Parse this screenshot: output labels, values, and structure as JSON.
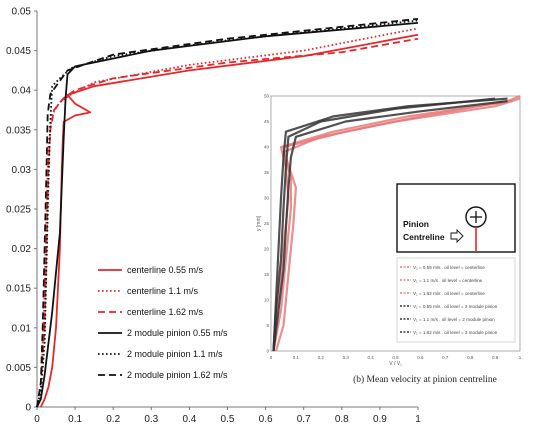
{
  "chart_data": [
    {
      "type": "line",
      "title": "",
      "xlabel": "",
      "ylabel": "",
      "xlim": [
        0,
        1
      ],
      "ylim": [
        0,
        0.05
      ],
      "x_ticks": [
        "0",
        "0.1",
        "0.2",
        "0.3",
        "0.4",
        "0.5",
        "0.6",
        "0.7",
        "0.8",
        "0.9",
        "1"
      ],
      "y_ticks": [
        "0",
        "0.005",
        "0.01",
        "0.015",
        "0.02",
        "0.025",
        "0.03",
        "0.035",
        "0.04",
        "0.045",
        "0.05"
      ],
      "grid": false,
      "legend_position": "bottom-left",
      "series": [
        {
          "name": "centerline 0.55 m/s",
          "color": "#e8262a",
          "style": "solid",
          "points": [
            [
              0.01,
              0.0
            ],
            [
              0.02,
              0.001
            ],
            [
              0.03,
              0.0025
            ],
            [
              0.04,
              0.005
            ],
            [
              0.05,
              0.01
            ],
            [
              0.06,
              0.02
            ],
            [
              0.065,
              0.03
            ],
            [
              0.068,
              0.034
            ],
            [
              0.07,
              0.036
            ],
            [
              0.1,
              0.0368
            ],
            [
              0.14,
              0.0372
            ],
            [
              0.1,
              0.0383
            ],
            [
              0.08,
              0.0394
            ],
            [
              0.15,
              0.0405
            ],
            [
              0.4,
              0.0425
            ],
            [
              0.7,
              0.0443
            ],
            [
              1.0,
              0.047
            ]
          ]
        },
        {
          "name": "centerline 1.1 m/s",
          "color": "#e8262a",
          "style": "dotted",
          "points": [
            [
              0.0,
              0.0
            ],
            [
              0.01,
              0.002
            ],
            [
              0.015,
              0.008
            ],
            [
              0.02,
              0.015
            ],
            [
              0.025,
              0.025
            ],
            [
              0.03,
              0.033
            ],
            [
              0.04,
              0.037
            ],
            [
              0.06,
              0.0385
            ],
            [
              0.09,
              0.0395
            ],
            [
              0.15,
              0.041
            ],
            [
              0.4,
              0.0432
            ],
            [
              0.7,
              0.045
            ],
            [
              1.0,
              0.0478
            ]
          ]
        },
        {
          "name": "centerline 1.62 m/s",
          "color": "#e8262a",
          "style": "dashed",
          "points": [
            [
              0.0,
              0.0
            ],
            [
              0.01,
              0.003
            ],
            [
              0.02,
              0.01
            ],
            [
              0.025,
              0.02
            ],
            [
              0.03,
              0.03
            ],
            [
              0.035,
              0.035
            ],
            [
              0.045,
              0.0375
            ],
            [
              0.07,
              0.039
            ],
            [
              0.1,
              0.04
            ],
            [
              0.2,
              0.0415
            ],
            [
              0.5,
              0.0435
            ],
            [
              0.8,
              0.0448
            ],
            [
              1.0,
              0.0465
            ]
          ]
        },
        {
          "name": "2 module pinion 0.55 m/s",
          "color": "#111111",
          "style": "solid",
          "points": [
            [
              0.0,
              0.0
            ],
            [
              0.01,
              0.001
            ],
            [
              0.02,
              0.004
            ],
            [
              0.03,
              0.008
            ],
            [
              0.04,
              0.012
            ],
            [
              0.05,
              0.017
            ],
            [
              0.06,
              0.022
            ],
            [
              0.065,
              0.028
            ],
            [
              0.07,
              0.034
            ],
            [
              0.075,
              0.039
            ],
            [
              0.08,
              0.042
            ],
            [
              0.1,
              0.043
            ],
            [
              0.3,
              0.045
            ],
            [
              0.6,
              0.0468
            ],
            [
              1.0,
              0.0485
            ]
          ]
        },
        {
          "name": "2 module pinion 1.1 m/s",
          "color": "#111111",
          "style": "dotted",
          "points": [
            [
              0.0,
              0.0
            ],
            [
              0.01,
              0.002
            ],
            [
              0.02,
              0.008
            ],
            [
              0.025,
              0.018
            ],
            [
              0.03,
              0.028
            ],
            [
              0.035,
              0.036
            ],
            [
              0.04,
              0.0405
            ],
            [
              0.06,
              0.0415
            ],
            [
              0.09,
              0.0428
            ],
            [
              0.2,
              0.0443
            ],
            [
              0.5,
              0.0463
            ],
            [
              0.8,
              0.0478
            ],
            [
              1.0,
              0.0488
            ]
          ]
        },
        {
          "name": "2 module pinion 1.62 m/s",
          "color": "#111111",
          "style": "dashed",
          "points": [
            [
              0.0,
              0.0
            ],
            [
              0.01,
              0.003
            ],
            [
              0.015,
              0.01
            ],
            [
              0.02,
              0.02
            ],
            [
              0.025,
              0.03
            ],
            [
              0.028,
              0.037
            ],
            [
              0.035,
              0.0395
            ],
            [
              0.05,
              0.0405
            ],
            [
              0.08,
              0.0425
            ],
            [
              0.2,
              0.0445
            ],
            [
              0.5,
              0.0465
            ],
            [
              0.8,
              0.048
            ],
            [
              1.0,
              0.049
            ]
          ]
        }
      ]
    },
    {
      "type": "line",
      "title": "",
      "caption": "(b) Mean velocity at pinion centreline",
      "xlabel": "V / V₁",
      "ylabel": "y [mm]",
      "xlim": [
        0,
        1
      ],
      "ylim": [
        0,
        50
      ],
      "x_ticks": [
        "0",
        "0.1",
        "0.2",
        "0.3",
        "0.4",
        "0.5",
        "0.6",
        "0.7",
        "0.8",
        "0.9",
        "1"
      ],
      "y_ticks": [
        "0",
        "5",
        "10",
        "15",
        "20",
        "25",
        "30",
        "35",
        "40",
        "45",
        "50"
      ],
      "legend_position": "right",
      "diagram_label": "Pinion Centreline",
      "series": [
        {
          "name": "V₁ = 0.55 m/s . oil level = centerline",
          "color": "#e87a7a",
          "points": [
            [
              0.02,
              0
            ],
            [
              0.05,
              5
            ],
            [
              0.07,
              15
            ],
            [
              0.09,
              25
            ],
            [
              0.1,
              32
            ],
            [
              0.06,
              38
            ],
            [
              0.05,
              40
            ],
            [
              0.3,
              43
            ],
            [
              0.6,
              46
            ],
            [
              0.95,
              49
            ],
            [
              1.0,
              50
            ]
          ]
        },
        {
          "name": "V₁ = 1.1 m/s . oil level = centerline",
          "color": "#e87a7a",
          "points": [
            [
              0.01,
              0
            ],
            [
              0.04,
              8
            ],
            [
              0.06,
              18
            ],
            [
              0.08,
              28
            ],
            [
              0.08,
              34
            ],
            [
              0.05,
              39
            ],
            [
              0.2,
              42
            ],
            [
              0.5,
              45
            ],
            [
              0.9,
              48
            ],
            [
              1.0,
              49.5
            ]
          ]
        },
        {
          "name": "V₁ = 1.62 m/s . oil level = centerline",
          "color": "#e87a7a",
          "points": [
            [
              0.01,
              0
            ],
            [
              0.03,
              10
            ],
            [
              0.05,
              20
            ],
            [
              0.07,
              30
            ],
            [
              0.06,
              36
            ],
            [
              0.04,
              40
            ],
            [
              0.25,
              43
            ],
            [
              0.55,
              46
            ],
            [
              0.97,
              49
            ]
          ]
        },
        {
          "name": "V₁ = 0.55 m/s . oil level = 2 module pinion",
          "color": "#333333",
          "points": [
            [
              0.01,
              0
            ],
            [
              0.03,
              8
            ],
            [
              0.05,
              16
            ],
            [
              0.06,
              24
            ],
            [
              0.07,
              32
            ],
            [
              0.08,
              38
            ],
            [
              0.1,
              42
            ],
            [
              0.3,
              45
            ],
            [
              0.6,
              47
            ],
            [
              0.95,
              49
            ]
          ]
        },
        {
          "name": "V₁ = 1.1 m/s . oil level = 2 module pinion",
          "color": "#333333",
          "points": [
            [
              0.01,
              0
            ],
            [
              0.02,
              8
            ],
            [
              0.04,
              18
            ],
            [
              0.05,
              28
            ],
            [
              0.06,
              36
            ],
            [
              0.07,
              42
            ],
            [
              0.2,
              45
            ],
            [
              0.5,
              47.5
            ],
            [
              0.9,
              49.5
            ]
          ]
        },
        {
          "name": "V₁ = 1.62 m/s . oil level = 2 module pinion",
          "color": "#333333",
          "points": [
            [
              0.01,
              0
            ],
            [
              0.02,
              10
            ],
            [
              0.03,
              20
            ],
            [
              0.04,
              30
            ],
            [
              0.05,
              38
            ],
            [
              0.06,
              43
            ],
            [
              0.25,
              46
            ],
            [
              0.55,
              48
            ],
            [
              0.95,
              49.5
            ]
          ]
        }
      ]
    }
  ]
}
